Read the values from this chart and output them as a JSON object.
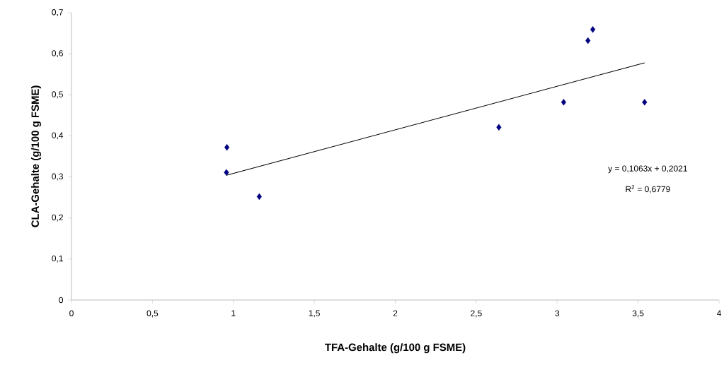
{
  "chart_data": {
    "type": "scatter",
    "xlabel": "TFA-Gehalte (g/100 g FSME)",
    "ylabel": "CLA-Gehalte (g/100 g FSME)",
    "series": [
      {
        "type": "scatter",
        "color": "#000080",
        "marker": "diamond",
        "x": [
          0.96,
          0.957,
          1.16,
          2.64,
          3.04,
          3.19,
          3.22,
          3.54
        ],
        "values": [
          0.372,
          0.311,
          0.252,
          0.421,
          0.482,
          0.632,
          0.659,
          0.482
        ]
      },
      {
        "type": "line",
        "color": "#000000",
        "marker": "none",
        "x": [
          0.957,
          3.54
        ],
        "values": [
          0.304,
          0.578
        ]
      }
    ],
    "annotations": [
      "y = 0,1063x + 0,2021",
      "R$^{2}$ = 0,6779"
    ],
    "xlim": [
      0,
      4
    ],
    "ylim": [
      0,
      0.7
    ],
    "xticks": [
      0,
      {
        "value": 0.5,
        "label": "0,5"
      },
      1,
      {
        "value": 1.5,
        "label": "1,5"
      },
      2,
      {
        "value": 2.5,
        "label": "2,5"
      },
      3,
      {
        "value": 3.5,
        "label": "3,5"
      },
      4
    ],
    "yticks": [
      0,
      {
        "value": 0.1,
        "label": "0,1"
      },
      {
        "value": 0.2,
        "label": "0,2"
      },
      {
        "value": 0.3,
        "label": "0,3"
      },
      {
        "value": 0.4,
        "label": "0,4"
      },
      {
        "value": 0.5,
        "label": "0,5"
      },
      {
        "value": 0.6,
        "label": "0,6"
      },
      {
        "value": 0.7,
        "label": "0,7"
      }
    ],
    "grid": false
  }
}
